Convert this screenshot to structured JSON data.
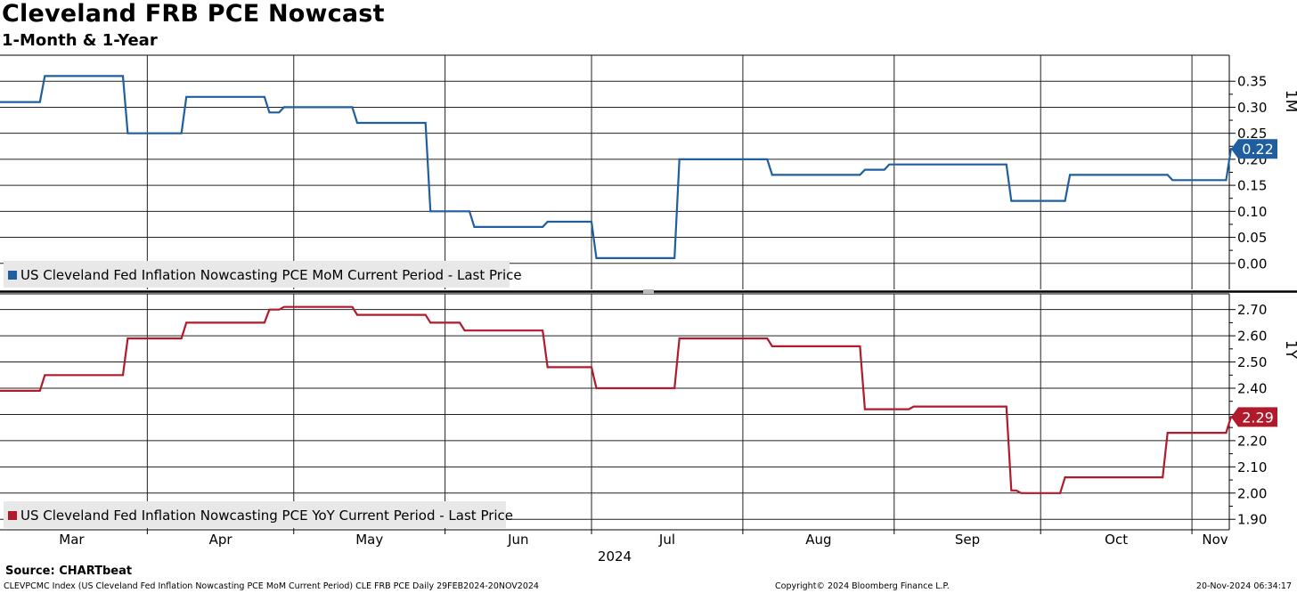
{
  "header": {
    "title": "Cleveland FRB PCE Nowcast",
    "subtitle": "1-Month & 1-Year"
  },
  "footer": {
    "source": "Source: CHARTbeat",
    "index_info": "CLEVPCMC Index (US Cleveland Fed Inflation Nowcasting PCE MoM Current Period) CLE FRB PCE  Daily 29FEB2024-20NOV2024",
    "copyright": "Copyright© 2024 Bloomberg Finance L.P.",
    "timestamp": "20-Nov-2024 06:34:17"
  },
  "chart_data": [
    {
      "type": "line",
      "panel_label": "1M",
      "x_year_label": "2024",
      "months": [
        "Mar",
        "Apr",
        "May",
        "Jun",
        "Jul",
        "Aug",
        "Sep",
        "Oct",
        "Nov"
      ],
      "ylim": [
        -0.05,
        0.4
      ],
      "yticks": [
        "0.35",
        "0.30",
        "0.25",
        "0.20",
        "0.15",
        "0.10",
        "0.05",
        "0.00"
      ],
      "grid": true,
      "legend_position": "bottom-left",
      "last_value_label": "0.22",
      "color": "#1f5fa0",
      "series": [
        {
          "name": "US Cleveland Fed Inflation Nowcasting PCE MoM Current Period - Last Price",
          "x": [
            "2024-02-29",
            "2024-03-10",
            "2024-03-11",
            "2024-03-27",
            "2024-03-28",
            "2024-04-08",
            "2024-04-09",
            "2024-04-25",
            "2024-04-26",
            "2024-04-28",
            "2024-04-29",
            "2024-05-13",
            "2024-05-14",
            "2024-05-28",
            "2024-05-29",
            "2024-06-06",
            "2024-06-07",
            "2024-06-21",
            "2024-06-22",
            "2024-07-01",
            "2024-07-02",
            "2024-07-18",
            "2024-07-19",
            "2024-08-06",
            "2024-08-07",
            "2024-08-25",
            "2024-08-26",
            "2024-08-30",
            "2024-08-31",
            "2024-09-24",
            "2024-09-25",
            "2024-10-06",
            "2024-10-07",
            "2024-10-27",
            "2024-10-28",
            "2024-11-08",
            "2024-11-09",
            "2024-11-15"
          ],
          "y": [
            0.31,
            0.31,
            0.36,
            0.36,
            0.25,
            0.25,
            0.32,
            0.32,
            0.29,
            0.29,
            0.3,
            0.3,
            0.27,
            0.27,
            0.1,
            0.1,
            0.07,
            0.07,
            0.08,
            0.08,
            0.01,
            0.01,
            0.2,
            0.2,
            0.17,
            0.17,
            0.18,
            0.18,
            0.19,
            0.19,
            0.12,
            0.12,
            0.17,
            0.17,
            0.16,
            0.16,
            0.22,
            0.22
          ]
        }
      ]
    },
    {
      "type": "line",
      "panel_label": "1Y",
      "ylim": [
        1.86,
        2.76
      ],
      "yticks": [
        "2.70",
        "2.60",
        "2.50",
        "2.40",
        "2.30",
        "2.20",
        "2.10",
        "2.00",
        "1.90"
      ],
      "grid": true,
      "legend_position": "bottom-left",
      "last_value_label": "2.29",
      "color": "#b11a2b",
      "series": [
        {
          "name": "US Cleveland Fed Inflation Nowcasting PCE YoY Current Period - Last Price",
          "x": [
            "2024-02-29",
            "2024-03-10",
            "2024-03-11",
            "2024-03-27",
            "2024-03-28",
            "2024-04-08",
            "2024-04-09",
            "2024-04-25",
            "2024-04-26",
            "2024-04-28",
            "2024-04-29",
            "2024-05-13",
            "2024-05-14",
            "2024-05-28",
            "2024-05-29",
            "2024-06-04",
            "2024-06-05",
            "2024-06-21",
            "2024-06-22",
            "2024-07-01",
            "2024-07-02",
            "2024-07-18",
            "2024-07-19",
            "2024-08-06",
            "2024-08-07",
            "2024-08-25",
            "2024-08-26",
            "2024-09-04",
            "2024-09-05",
            "2024-09-24",
            "2024-09-25",
            "2024-09-26",
            "2024-09-27",
            "2024-10-05",
            "2024-10-06",
            "2024-10-26",
            "2024-10-27",
            "2024-11-08",
            "2024-11-09",
            "2024-11-15"
          ],
          "y": [
            2.39,
            2.39,
            2.45,
            2.45,
            2.59,
            2.59,
            2.65,
            2.65,
            2.7,
            2.7,
            2.71,
            2.71,
            2.68,
            2.68,
            2.65,
            2.65,
            2.62,
            2.62,
            2.48,
            2.48,
            2.4,
            2.4,
            2.59,
            2.59,
            2.56,
            2.56,
            2.32,
            2.32,
            2.33,
            2.33,
            2.01,
            2.01,
            2.0,
            2.0,
            2.06,
            2.06,
            2.23,
            2.23,
            2.29,
            2.29
          ]
        }
      ]
    }
  ]
}
